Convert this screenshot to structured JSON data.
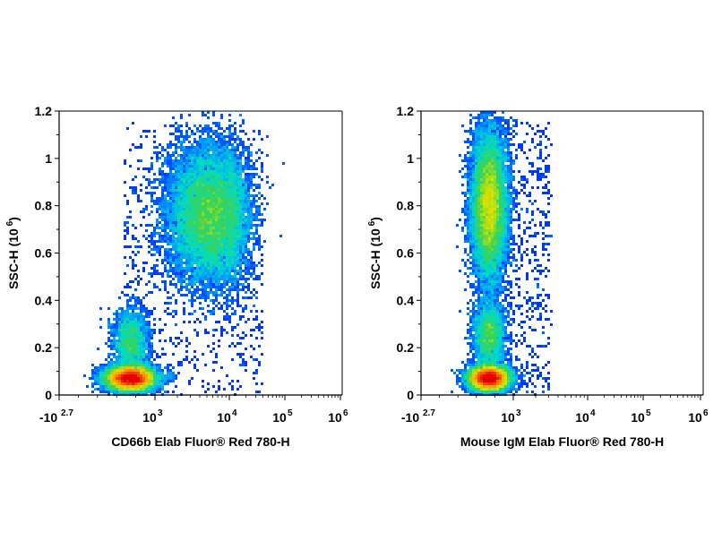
{
  "chart_data": [
    {
      "type": "scatter",
      "title": "",
      "xlabel": "CD66b Elab Fluor® Red 780-H",
      "ylabel": "SSC-H  (10",
      "ylabel_sup": "6",
      "ylabel_close": ")",
      "x_scale": "biexponential",
      "xlim": [
        -500,
        1000000
      ],
      "ylim": [
        0,
        1.2
      ],
      "yticks": [
        0,
        0.2,
        0.4,
        0.6,
        0.8,
        1,
        1.2
      ],
      "ytick_labels": [
        "0",
        "0.2",
        "0.4",
        "0.6",
        "0.8",
        "1",
        "1.2"
      ],
      "xtick_labels": [
        {
          "base": "-10",
          "exp": "2.7"
        },
        {
          "base": "10",
          "exp": "3"
        },
        {
          "base": "10",
          "exp": "4"
        },
        {
          "base": "10",
          "exp": "5"
        },
        {
          "base": "10",
          "exp": "6"
        }
      ],
      "grid": false,
      "colormap": "density (blue-cyan-green-yellow-red)",
      "populations": [
        {
          "x_center_log": 2.55,
          "y_center": 0.07,
          "x_spread": 0.22,
          "y_spread": 0.025,
          "weight": 0.42
        },
        {
          "x_center_log": 2.55,
          "y_center": 0.22,
          "x_spread": 0.16,
          "y_spread": 0.07,
          "weight": 0.08
        },
        {
          "x_center_log": 3.75,
          "y_center": 0.76,
          "x_spread": 0.28,
          "y_spread": 0.14,
          "weight": 0.5
        }
      ]
    },
    {
      "type": "scatter",
      "title": "",
      "xlabel": "Mouse IgM Elab Fluor® Red 780-H",
      "ylabel": "SSC-H  (10",
      "ylabel_sup": "6",
      "ylabel_close": ")",
      "x_scale": "biexponential",
      "xlim": [
        -500,
        1000000
      ],
      "ylim": [
        0,
        1.2
      ],
      "yticks": [
        0,
        0.2,
        0.4,
        0.6,
        0.8,
        1,
        1.2
      ],
      "ytick_labels": [
        "0",
        "0.2",
        "0.4",
        "0.6",
        "0.8",
        "1",
        "1.2"
      ],
      "xtick_labels": [
        {
          "base": "-10",
          "exp": "2.7"
        },
        {
          "base": "10",
          "exp": "3"
        },
        {
          "base": "10",
          "exp": "4"
        },
        {
          "base": "10",
          "exp": "5"
        },
        {
          "base": "10",
          "exp": "6"
        }
      ],
      "grid": false,
      "colormap": "density (blue-cyan-green-yellow-red)",
      "populations": [
        {
          "x_center_log": 2.55,
          "y_center": 0.07,
          "x_spread": 0.18,
          "y_spread": 0.025,
          "weight": 0.42
        },
        {
          "x_center_log": 2.55,
          "y_center": 0.25,
          "x_spread": 0.14,
          "y_spread": 0.07,
          "weight": 0.1
        },
        {
          "x_center_log": 2.55,
          "y_center": 0.8,
          "x_spread": 0.16,
          "y_spread": 0.15,
          "weight": 0.48
        }
      ]
    }
  ]
}
